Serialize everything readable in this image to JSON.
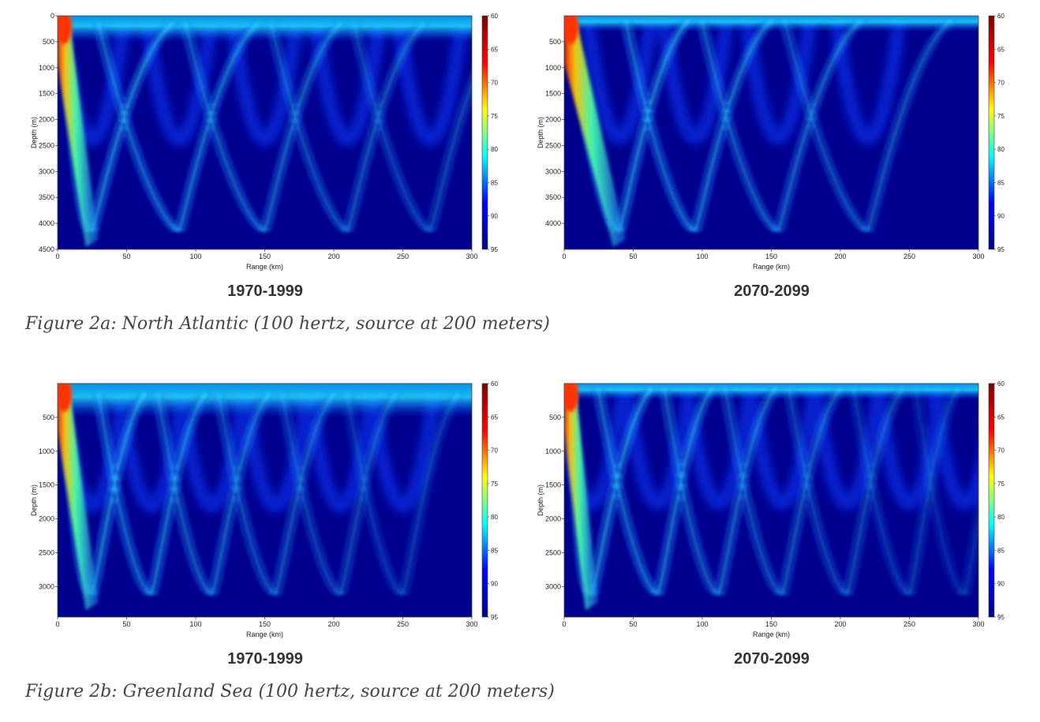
{
  "figures": [
    {
      "caption": "Figure 2a: North Atlantic (100 hertz, source at 200 meters)",
      "left_period": "1970-1999",
      "right_period": "2070-2099"
    },
    {
      "caption": "Figure 2b: Greenland Sea (100 hertz, source at 200 meters)",
      "left_period": "1970-1999",
      "right_period": "2070-2099"
    }
  ],
  "colors": {
    "colormap": [
      "#00008f",
      "#0000ff",
      "#00ffff",
      "#ffff00",
      "#ff0000",
      "#800000"
    ],
    "background_field": "#00008f"
  },
  "chart_data": [
    {
      "type": "heatmap",
      "region": "North Atlantic",
      "period": "1970-1999",
      "xlabel": "Range (km)",
      "ylabel": "Depth (m)",
      "xlim": [
        0,
        300
      ],
      "ylim": [
        0,
        4500
      ],
      "xticks": [
        "0",
        "50",
        "100",
        "150",
        "200",
        "250",
        "300"
      ],
      "yticks": [
        "0",
        "500",
        "1000",
        "1500",
        "2000",
        "2500",
        "3000",
        "3500",
        "4000",
        "4500"
      ],
      "colorbar_ticks": [
        "60",
        "65",
        "70",
        "75",
        "80",
        "85",
        "90",
        "95"
      ],
      "colorbar_range": [
        60,
        95
      ],
      "ray_vertices_km": [
        25,
        88,
        150,
        210,
        270
      ],
      "turn_depth_m": 4000,
      "surface_duct_depth_m": 250
    },
    {
      "type": "heatmap",
      "region": "North Atlantic",
      "period": "2070-2099",
      "xlabel": "Range (km)",
      "ylabel": "Depth (m)",
      "xlim": [
        0,
        300
      ],
      "ylim": [
        0,
        4500
      ],
      "xticks": [
        "0",
        "50",
        "100",
        "150",
        "200",
        "250",
        "300"
      ],
      "yticks": [
        "500",
        "1000",
        "1500",
        "2000",
        "2500",
        "3000",
        "3500",
        "4000"
      ],
      "colorbar_ticks": [
        "60",
        "65",
        "70",
        "75",
        "80",
        "85",
        "90",
        "95"
      ],
      "colorbar_range": [
        60,
        95
      ],
      "ray_vertices_km": [
        40,
        95,
        155,
        220
      ],
      "turn_depth_m": 4000,
      "surface_duct_depth_m": 150
    },
    {
      "type": "heatmap",
      "region": "Greenland Sea",
      "period": "1970-1999",
      "xlabel": "Range (km)",
      "ylabel": "Depth (m)",
      "xlim": [
        0,
        300
      ],
      "ylim": [
        0,
        3450
      ],
      "xticks": [
        "0",
        "50",
        "100",
        "150",
        "200",
        "250",
        "300"
      ],
      "yticks": [
        "500",
        "1000",
        "1500",
        "2000",
        "2500",
        "3000"
      ],
      "colorbar_ticks": [
        "60",
        "65",
        "70",
        "75",
        "80",
        "85",
        "90",
        "95"
      ],
      "colorbar_range": [
        60,
        95
      ],
      "ray_vertices_km": [
        25,
        68,
        112,
        158,
        205,
        250
      ],
      "turn_depth_m": 3000,
      "surface_duct_depth_m": 250
    },
    {
      "type": "heatmap",
      "region": "Greenland Sea",
      "period": "2070-2099",
      "xlabel": "Range (km)",
      "ylabel": "Depth (m)",
      "xlim": [
        0,
        300
      ],
      "ylim": [
        0,
        3450
      ],
      "xticks": [
        "0",
        "50",
        "100",
        "150",
        "200",
        "250",
        "300"
      ],
      "yticks": [
        "500",
        "1000",
        "1500",
        "2000",
        "2500",
        "3000"
      ],
      "colorbar_ticks": [
        "60",
        "65",
        "70",
        "75",
        "80",
        "85",
        "90",
        "95"
      ],
      "colorbar_range": [
        60,
        95
      ],
      "ray_vertices_km": [
        20,
        68,
        112,
        158,
        205,
        250,
        290
      ],
      "turn_depth_m": 3000,
      "surface_duct_depth_m": 120
    }
  ]
}
